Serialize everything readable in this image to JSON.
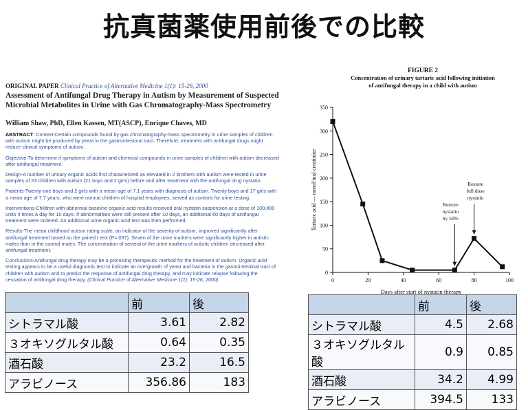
{
  "title": "抗真菌薬使用前後での比較",
  "paper": {
    "label": "ORIGINAL PAPER",
    "journal": "Clinical Practice of Alternative Medicine 1(1): 15-26, 2000",
    "title_line1": "Assessment of Antifungal Drug Therapy in Autism by Measurement of Suspected",
    "title_line2": "Microbial Metabolites in Urine with Gas Chromatography-Mass Spectrometry",
    "authors": "William Shaw, PhD, Ellen Kassen, MT(ASCP), Enrique Chaves, MD",
    "abstract_label": "ABSTRACT",
    "abstract": ": Context-Certain compounds found by gas chromatography-mass spectrometry in urine samples of children with autism might be produced by yeast in the gastrointestinal tract. Therefore, treatment with antifungal drugs might reduce clinical symptoms of autism.",
    "objective": "Objective-To determine if symptoms of autism and chemical compounds in urine samples of children with autism decreased after antifungal treatment.",
    "design": "Design-A number of urinary organic acids first characterized as elevated in 2 brothers with autism were tested in urine samples of 23 children with autism (21 boys and 2 girls) before and after treatment with the antifungal drug nystatin.",
    "patients": "Patients-Twenty-one boys and 2 girls with a mean age of 7.1 years with diagnosis of autism. Twenty boys and 17 girls with a mean age of 7.7 years, who were normal children of hospital employees, served as controls for urine testing.",
    "interventions": "Interventions-Children with abnormal baseline organic acid results received oral nystatin suspension at a dose of 100,000 units 4 times a day for 10 days. If abnormalities were still present after 10 days, an additional 60 days of antifungal treatment were ordered. An additional urine organic acid test was then performed.",
    "results": "Results-The mean childhood autism rating scale, an indicator of the severity of autism, improved significantly after antifungal treatment based on the paired t test (P=.037). Seven of the urine markers were significantly higher in autistic males than in the control males. The concentration of several of the urine markers of autistic children decreased after antifungal treatment.",
    "conclusions": "Conclusions-Antifungal drug therapy may be a promising therapeutic method for the treatment of autism. Organic acid testing appears to be a useful diagnostic test to indicate an overgrowth of yeast and bacteria in the gastrointestinal tract of children with autism and to predict the response of antifungal drug therapy, and may indicate relapse following the cessation of antifungal drug therapy.",
    "citation": "(Clinical Practice of Alternative Medicine 1(1): 15-26, 2000)"
  },
  "figure": {
    "label": "FIGURE 2",
    "caption_line1": "Concentration of urinary tartaric acid following initiation",
    "caption_line2": "of antifungal therapy in a child with autism"
  },
  "chart_data": {
    "type": "line",
    "x": [
      0,
      17,
      28,
      45,
      69,
      80,
      96
    ],
    "y": [
      320,
      145,
      25,
      5,
      5,
      72,
      12
    ],
    "xticks": [
      0,
      20,
      40,
      60,
      80,
      100
    ],
    "yticks": [
      0,
      50,
      100,
      150,
      200,
      250,
      300,
      350
    ],
    "xlim": [
      0,
      100
    ],
    "ylim": [
      0,
      350
    ],
    "xlabel": "Days after start of nystatin therapy",
    "ylabel": "Tartaric acid — mmol/mol creatinine",
    "annotations": [
      {
        "lines": [
          "Restore",
          "nystatin",
          "by 50%"
        ],
        "x": 69
      },
      {
        "lines": [
          "Restore",
          "full dose",
          "nystatin"
        ],
        "x": 80
      }
    ]
  },
  "table1": {
    "headers": [
      "",
      "前",
      "後"
    ],
    "rows": [
      [
        "シトラマル酸",
        "3.61",
        "2.82"
      ],
      [
        "３オキソグルタル酸",
        "0.64",
        "0.35"
      ],
      [
        "酒石酸",
        "23.2",
        "16.5"
      ],
      [
        "アラビノース",
        "356.86",
        "183"
      ]
    ]
  },
  "table2": {
    "headers": [
      "",
      "前",
      "後"
    ],
    "rows": [
      [
        "シトラマル酸",
        "4.5",
        "2.68"
      ],
      [
        "３オキソグルタル酸",
        "0.9",
        "0.85"
      ],
      [
        "酒石酸",
        "34.2",
        "4.99"
      ],
      [
        "アラビノース",
        "394.5",
        "133"
      ]
    ]
  }
}
